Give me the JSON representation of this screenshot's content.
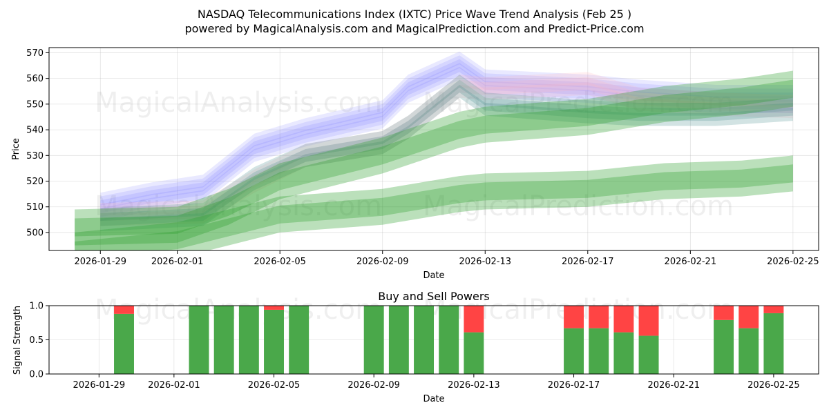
{
  "colors": {
    "green": "#2ca02c",
    "blue": "#6666ff",
    "pink": "#ffb6c1",
    "buy": "#4aa84a",
    "sell": "#ff4444"
  },
  "watermarks": [
    "MagicalAnalysis.com",
    "MagicalPrediction.com"
  ],
  "chart_data": [
    {
      "type": "line",
      "title": "NASDAQ Telecommunications Index (IXTC) Price Wave Trend Analysis (Feb 25 )",
      "subtitle": "powered by MagicalAnalysis.com and MagicalPrediction.com and Predict-Price.com",
      "xlabel": "Date",
      "ylabel": "Price",
      "xlim": [
        "2026-01-27",
        "2026-02-26"
      ],
      "ylim": [
        493,
        572
      ],
      "x_ticks": [
        "2026-01-29",
        "2026-02-01",
        "2026-02-05",
        "2026-02-09",
        "2026-02-13",
        "2026-02-17",
        "2026-02-21",
        "2026-02-25"
      ],
      "y_ticks": [
        500,
        510,
        520,
        530,
        540,
        550,
        560,
        570
      ],
      "grid": true,
      "series": [
        {
          "name": "Blue wave",
          "color": "blue",
          "points": [
            [
              "2026-01-29",
              510
            ],
            [
              "2026-01-31",
              514
            ],
            [
              "2026-02-02",
              517
            ],
            [
              "2026-02-04",
              533
            ],
            [
              "2026-02-06",
              539
            ],
            [
              "2026-02-09",
              546
            ],
            [
              "2026-02-10",
              556
            ],
            [
              "2026-02-12",
              565
            ],
            [
              "2026-02-13",
              558
            ],
            [
              "2026-02-17",
              556
            ],
            [
              "2026-02-19",
              554
            ],
            [
              "2026-02-22",
              552
            ],
            [
              "2026-02-25",
              552
            ]
          ]
        },
        {
          "name": "Pink wave",
          "color": "pink",
          "points": [
            [
              "2026-01-29",
              507
            ],
            [
              "2026-02-02",
              508
            ],
            [
              "2026-02-04",
              520
            ],
            [
              "2026-02-06",
              530
            ],
            [
              "2026-02-09",
              535
            ],
            [
              "2026-02-10",
              541
            ],
            [
              "2026-02-12",
              557
            ],
            [
              "2026-02-13",
              556
            ],
            [
              "2026-02-17",
              558
            ],
            [
              "2026-02-19",
              552
            ],
            [
              "2026-02-22",
              550
            ],
            [
              "2026-02-25",
              549
            ]
          ]
        },
        {
          "name": "Teal wave",
          "color": "teal",
          "points": [
            [
              "2026-01-29",
              505
            ],
            [
              "2026-02-02",
              507
            ],
            [
              "2026-02-04",
              521
            ],
            [
              "2026-02-06",
              530
            ],
            [
              "2026-02-09",
              535
            ],
            [
              "2026-02-10",
              541
            ],
            [
              "2026-02-12",
              557
            ],
            [
              "2026-02-13",
              550
            ],
            [
              "2026-02-17",
              547
            ],
            [
              "2026-02-19",
              546
            ],
            [
              "2026-02-22",
              546
            ],
            [
              "2026-02-25",
              548
            ]
          ]
        },
        {
          "name": "Upper green band",
          "color": "green",
          "points": [
            [
              "2026-01-28",
              502
            ],
            [
              "2026-02-01",
              503
            ],
            [
              "2026-02-03",
              510
            ],
            [
              "2026-02-05",
              520
            ],
            [
              "2026-02-09",
              530
            ],
            [
              "2026-02-12",
              540
            ],
            [
              "2026-02-13",
              542
            ],
            [
              "2026-02-17",
              545
            ],
            [
              "2026-02-20",
              550
            ],
            [
              "2026-02-23",
              553
            ],
            [
              "2026-02-25",
              556
            ]
          ]
        },
        {
          "name": "Lower green band",
          "color": "green",
          "points": [
            [
              "2026-01-28",
              493
            ],
            [
              "2026-02-01",
              497
            ],
            [
              "2026-02-03",
              502
            ],
            [
              "2026-02-05",
              507
            ],
            [
              "2026-02-09",
              510
            ],
            [
              "2026-02-12",
              515
            ],
            [
              "2026-02-13",
              516
            ],
            [
              "2026-02-17",
              517
            ],
            [
              "2026-02-20",
              520
            ],
            [
              "2026-02-23",
              521
            ],
            [
              "2026-02-25",
              523
            ]
          ]
        }
      ]
    },
    {
      "type": "bar",
      "title": "Buy and Sell Powers",
      "xlabel": "Date",
      "ylabel": "Signal Strength",
      "ylim": [
        0,
        1
      ],
      "x_ticks": [
        "2026-01-29",
        "2026-02-01",
        "2026-02-05",
        "2026-02-09",
        "2026-02-13",
        "2026-02-17",
        "2026-02-21",
        "2026-02-25"
      ],
      "y_ticks": [
        "0.0",
        "0.5",
        "1.0"
      ],
      "grid": true,
      "series": [
        {
          "name": "Buy",
          "color": "buy"
        },
        {
          "name": "Sell",
          "color": "sell"
        }
      ],
      "bars": [
        {
          "date": "2026-01-30",
          "buy": 0.88
        },
        {
          "date": "2026-02-02",
          "buy": 1.0
        },
        {
          "date": "2026-02-03",
          "buy": 1.0
        },
        {
          "date": "2026-02-04",
          "buy": 1.0
        },
        {
          "date": "2026-02-05",
          "buy": 0.94
        },
        {
          "date": "2026-02-06",
          "buy": 1.0
        },
        {
          "date": "2026-02-09",
          "buy": 1.0
        },
        {
          "date": "2026-02-10",
          "buy": 1.0
        },
        {
          "date": "2026-02-11",
          "buy": 1.0
        },
        {
          "date": "2026-02-12",
          "buy": 1.0
        },
        {
          "date": "2026-02-13",
          "buy": 0.61
        },
        {
          "date": "2026-02-17",
          "buy": 0.67
        },
        {
          "date": "2026-02-18",
          "buy": 0.67
        },
        {
          "date": "2026-02-19",
          "buy": 0.61
        },
        {
          "date": "2026-02-20",
          "buy": 0.56
        },
        {
          "date": "2026-02-23",
          "buy": 0.79
        },
        {
          "date": "2026-02-24",
          "buy": 0.67
        },
        {
          "date": "2026-02-25",
          "buy": 0.89
        }
      ]
    }
  ]
}
